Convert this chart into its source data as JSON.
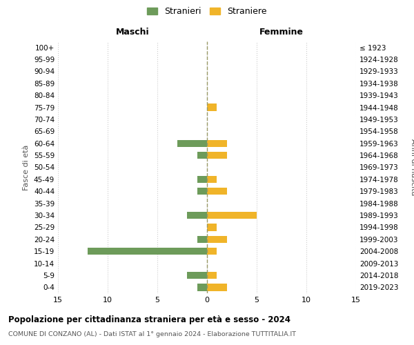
{
  "age_groups": [
    "100+",
    "95-99",
    "90-94",
    "85-89",
    "80-84",
    "75-79",
    "70-74",
    "65-69",
    "60-64",
    "55-59",
    "50-54",
    "45-49",
    "40-44",
    "35-39",
    "30-34",
    "25-29",
    "20-24",
    "15-19",
    "10-14",
    "5-9",
    "0-4"
  ],
  "birth_years": [
    "≤ 1923",
    "1924-1928",
    "1929-1933",
    "1934-1938",
    "1939-1943",
    "1944-1948",
    "1949-1953",
    "1954-1958",
    "1959-1963",
    "1964-1968",
    "1969-1973",
    "1974-1978",
    "1979-1983",
    "1984-1988",
    "1989-1993",
    "1994-1998",
    "1999-2003",
    "2004-2008",
    "2009-2013",
    "2014-2018",
    "2019-2023"
  ],
  "males": [
    0,
    0,
    0,
    0,
    0,
    0,
    0,
    0,
    3,
    1,
    0,
    1,
    1,
    0,
    2,
    0,
    1,
    12,
    0,
    2,
    1
  ],
  "females": [
    0,
    0,
    0,
    0,
    0,
    1,
    0,
    0,
    2,
    2,
    0,
    1,
    2,
    0,
    5,
    1,
    2,
    1,
    0,
    1,
    2
  ],
  "male_color": "#6d9b5a",
  "female_color": "#f0b429",
  "background_color": "#ffffff",
  "grid_color": "#cccccc",
  "dashed_line_color": "#999966",
  "title": "Popolazione per cittadinanza straniera per età e sesso - 2024",
  "subtitle": "COMUNE DI CONZANO (AL) - Dati ISTAT al 1° gennaio 2024 - Elaborazione TUTTITALIA.IT",
  "xlabel_left": "Maschi",
  "xlabel_right": "Femmine",
  "ylabel_left": "Fasce di età",
  "ylabel_right": "Anni di nascita",
  "legend_male": "Stranieri",
  "legend_female": "Straniere",
  "xlim": 15,
  "tick_labels": [
    "15",
    "10",
    "5",
    "0",
    "5",
    "10",
    "15"
  ]
}
